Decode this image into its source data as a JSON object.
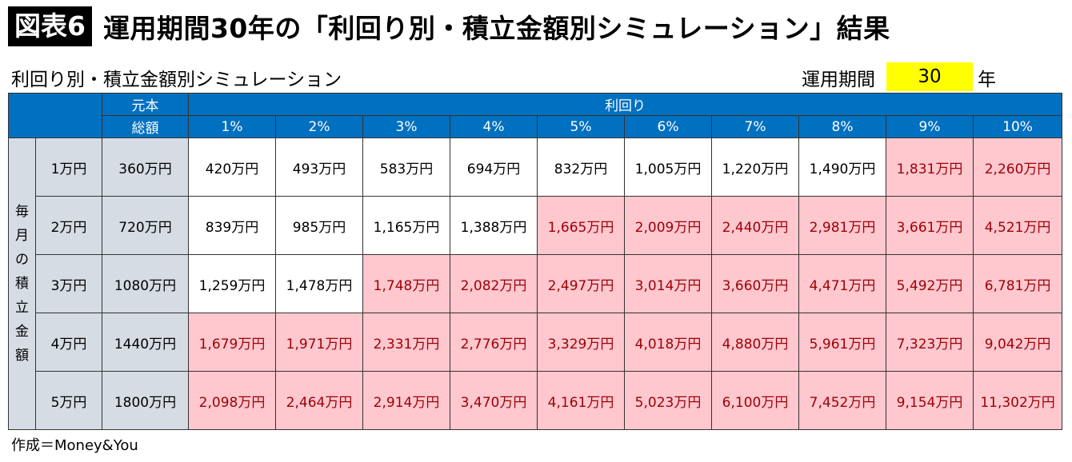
{
  "header": {
    "badge": "図表6",
    "title": "運用期間30年の「利回り別・積立金額別シミュレーション」結果"
  },
  "subtitle": "利回り別・積立金額別シミュレーション",
  "period": {
    "label": "運用期間",
    "value": "30",
    "unit": "年"
  },
  "footer": "作成＝Money&You",
  "colors": {
    "header_blue": "#0070c0",
    "gray": "#d6dce4",
    "highlight_pink": "#ffc7ce",
    "highlight_text": "#9c0006",
    "period_yellow": "#ffff00"
  },
  "chart_data": {
    "type": "table",
    "principal_header": [
      "元本",
      "総額"
    ],
    "rate_header": "利回り",
    "row_group_label": [
      "毎",
      "月",
      "の",
      "積",
      "立",
      "金",
      "額"
    ],
    "rates": [
      "1%",
      "2%",
      "3%",
      "4%",
      "5%",
      "6%",
      "7%",
      "8%",
      "9%",
      "10%"
    ],
    "rows": [
      {
        "monthly": "1万円",
        "principal": "360万円",
        "values": [
          "420万円",
          "493万円",
          "583万円",
          "694万円",
          "832万円",
          "1,005万円",
          "1,220万円",
          "1,490万円",
          "1,831万円",
          "2,260万円"
        ],
        "highlight": [
          false,
          false,
          false,
          false,
          false,
          false,
          false,
          false,
          true,
          true
        ]
      },
      {
        "monthly": "2万円",
        "principal": "720万円",
        "values": [
          "839万円",
          "985万円",
          "1,165万円",
          "1,388万円",
          "1,665万円",
          "2,009万円",
          "2,440万円",
          "2,981万円",
          "3,661万円",
          "4,521万円"
        ],
        "highlight": [
          false,
          false,
          false,
          false,
          true,
          true,
          true,
          true,
          true,
          true
        ]
      },
      {
        "monthly": "3万円",
        "principal": "1080万円",
        "values": [
          "1,259万円",
          "1,478万円",
          "1,748万円",
          "2,082万円",
          "2,497万円",
          "3,014万円",
          "3,660万円",
          "4,471万円",
          "5,492万円",
          "6,781万円"
        ],
        "highlight": [
          false,
          false,
          true,
          true,
          true,
          true,
          true,
          true,
          true,
          true
        ]
      },
      {
        "monthly": "4万円",
        "principal": "1440万円",
        "values": [
          "1,679万円",
          "1,971万円",
          "2,331万円",
          "2,776万円",
          "3,329万円",
          "4,018万円",
          "4,880万円",
          "5,961万円",
          "7,323万円",
          "9,042万円"
        ],
        "highlight": [
          true,
          true,
          true,
          true,
          true,
          true,
          true,
          true,
          true,
          true
        ]
      },
      {
        "monthly": "5万円",
        "principal": "1800万円",
        "values": [
          "2,098万円",
          "2,464万円",
          "2,914万円",
          "3,470万円",
          "4,161万円",
          "5,023万円",
          "6,100万円",
          "7,452万円",
          "9,154万円",
          "11,302万円"
        ],
        "highlight": [
          true,
          true,
          true,
          true,
          true,
          true,
          true,
          true,
          true,
          true
        ]
      }
    ]
  }
}
